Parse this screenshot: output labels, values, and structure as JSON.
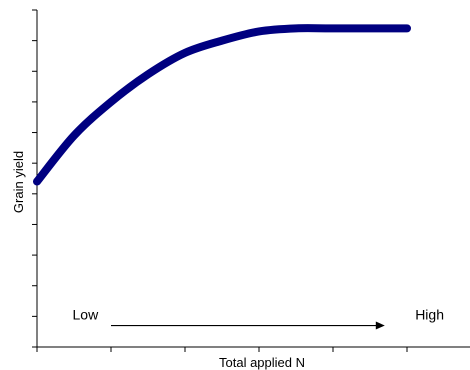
{
  "chart_data": {
    "type": "line",
    "title": "",
    "xlabel": "Total applied N",
    "ylabel": "Grain yield",
    "xlim": [
      0,
      5
    ],
    "ylim": [
      0,
      11
    ],
    "x_major_ticks": [
      0,
      1,
      2,
      3,
      4,
      5
    ],
    "y_major_ticks": [
      0,
      1,
      2,
      3,
      4,
      5,
      6,
      7,
      8,
      9,
      10,
      11
    ],
    "grid": false,
    "legend": "none",
    "line_color": "#000080",
    "series": [
      {
        "values": [
          [
            0.0,
            5.4
          ],
          [
            0.5,
            6.9
          ],
          [
            1.0,
            8.0
          ],
          [
            1.5,
            8.9
          ],
          [
            2.0,
            9.6
          ],
          [
            2.5,
            10.0
          ],
          [
            3.0,
            10.3
          ],
          [
            3.5,
            10.4
          ],
          [
            4.0,
            10.4
          ],
          [
            5.0,
            10.4
          ]
        ]
      }
    ],
    "annotations": [
      {
        "text": "Low",
        "x": 0.75,
        "y": 0.9
      },
      {
        "text": "High",
        "x": 5.3,
        "y": 0.9
      }
    ],
    "annotation_arrow": {
      "from": [
        1.0,
        0.7
      ],
      "to": [
        4.7,
        0.7
      ]
    }
  }
}
